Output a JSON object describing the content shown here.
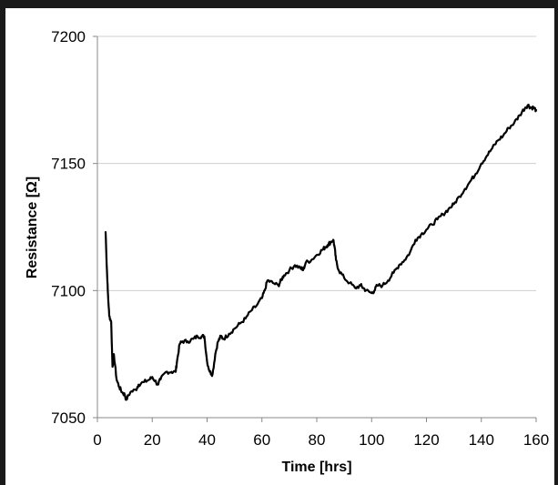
{
  "chart_data": {
    "type": "line",
    "title": "",
    "xlabel": "Time [hrs]",
    "ylabel": "Resistance [Ω]",
    "xlim": [
      0,
      160
    ],
    "ylim": [
      7050,
      7200
    ],
    "x_ticks": [
      0,
      20,
      40,
      60,
      80,
      100,
      120,
      140,
      160
    ],
    "y_ticks": [
      7050,
      7100,
      7150,
      7200
    ],
    "grid": "horizontal",
    "legend": "none",
    "line_color": "#000000",
    "series": [
      {
        "x": [
          3,
          3.4,
          3.8,
          4.3,
          5,
          5.5,
          6,
          7,
          8,
          9,
          10,
          10.5,
          12,
          14,
          15,
          17,
          19,
          20,
          22,
          23,
          25,
          27,
          28.5,
          29,
          30,
          31,
          33,
          35,
          36.5,
          38,
          39,
          40,
          41,
          42,
          43,
          44,
          45,
          46,
          48,
          50,
          52,
          54,
          56,
          58,
          60,
          61,
          62,
          64,
          66,
          67,
          68,
          70,
          72,
          74,
          75,
          76,
          78,
          80,
          82,
          83,
          84,
          85,
          86,
          86.5,
          87,
          88,
          90,
          92,
          94,
          96,
          97,
          98,
          100,
          101,
          102,
          104,
          106,
          108,
          110,
          112,
          114,
          116,
          118,
          120,
          122,
          124,
          126,
          128,
          130,
          132,
          134,
          136,
          138,
          140,
          142,
          144,
          146,
          148,
          150,
          152,
          154,
          156,
          157,
          158,
          159,
          160
        ],
        "y": [
          7123,
          7110,
          7100,
          7090,
          7088,
          7070,
          7075,
          7065,
          7062,
          7060,
          7059,
          7057,
          7060,
          7061,
          7063,
          7064,
          7065,
          7066,
          7063,
          7065,
          7068,
          7068,
          7068,
          7072,
          7079,
          7080,
          7080,
          7081,
          7082,
          7082,
          7082,
          7072,
          7068,
          7067,
          7075,
          7080,
          7082,
          7081,
          7083,
          7085,
          7087,
          7089,
          7092,
          7094,
          7097,
          7100,
          7104,
          7103,
          7102,
          7104,
          7106,
          7108,
          7110,
          7109,
          7108,
          7111,
          7112,
          7114,
          7116,
          7117,
          7118,
          7119,
          7120,
          7117,
          7112,
          7108,
          7105,
          7103,
          7101,
          7102,
          7101,
          7100,
          7099,
          7100,
          7102,
          7102,
          7104,
          7107,
          7110,
          7112,
          7115,
          7120,
          7122,
          7124,
          7126,
          7128,
          7130,
          7132,
          7134,
          7137,
          7140,
          7143,
          7146,
          7150,
          7153,
          7156,
          7159,
          7161,
          7164,
          7166,
          7169,
          7172,
          7173,
          7172,
          7172,
          7171
        ]
      }
    ]
  }
}
